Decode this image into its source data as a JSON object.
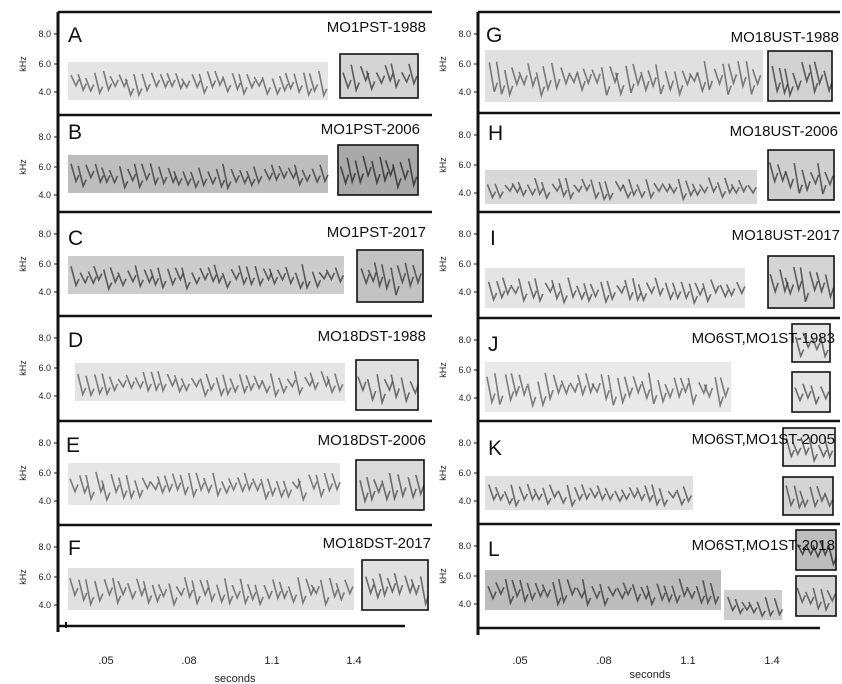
{
  "figure": {
    "y_axis": {
      "label": "kHz",
      "ticks": [
        "8.0",
        "6.0",
        "4.0"
      ]
    },
    "x_axis": {
      "label": "seconds",
      "ticks": [
        ".05",
        ".08",
        "1.1",
        "1.4"
      ]
    },
    "panels": [
      {
        "letter": "A",
        "title": "MO1PST-1988"
      },
      {
        "letter": "B",
        "title": "MO1PST-2006"
      },
      {
        "letter": "C",
        "title": "MO1PST-2017"
      },
      {
        "letter": "D",
        "title": "MO18DST-1988"
      },
      {
        "letter": "E",
        "title": "MO18DST-2006"
      },
      {
        "letter": "F",
        "title": "MO18DST-2017"
      },
      {
        "letter": "G",
        "title": "MO18UST-1988"
      },
      {
        "letter": "H",
        "title": "MO18UST-2006"
      },
      {
        "letter": "I",
        "title": "MO18UST-2017"
      },
      {
        "letter": "J",
        "title": "MO6ST,MO1ST-1983"
      },
      {
        "letter": "K",
        "title": "MO6ST,MO1ST-2005"
      },
      {
        "letter": "L",
        "title": "MO6ST,MO1ST-2018"
      }
    ]
  }
}
